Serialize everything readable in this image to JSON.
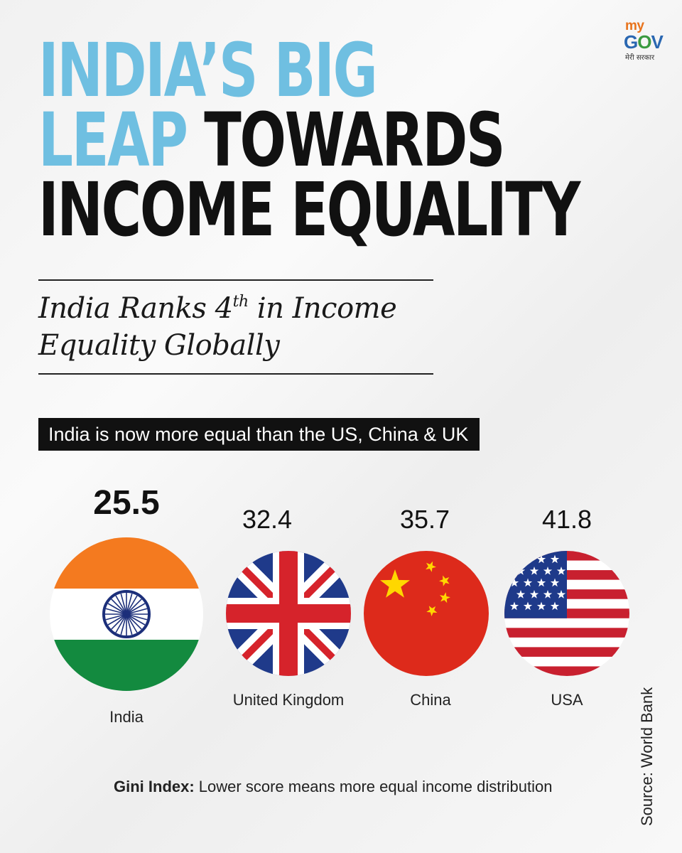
{
  "logo": {
    "line1": "my",
    "line2_a": "G",
    "line2_b": "O",
    "line2_c": "V",
    "tagline": "मेरी सरकार"
  },
  "title": {
    "line1": "INDIA’S BIG",
    "line2_blue": "LEAP",
    "line2_dark": "TOWARDS",
    "line3": "INCOME EQUALITY"
  },
  "subtitle": {
    "part1": "India Ranks 4",
    "sup": "th",
    "part2": " in Income",
    "line2": "Equality Globally"
  },
  "banner": "India is now more equal than the US, China & UK",
  "chart_data": {
    "type": "bar",
    "categories": [
      "India",
      "United Kingdom",
      "China",
      "USA"
    ],
    "values": [
      25.5,
      32.4,
      35.7,
      41.8
    ],
    "value_labels": [
      "25.5",
      "32.4",
      "35.7",
      "41.8"
    ]
  },
  "note": {
    "bold": "Gini Index:",
    "text": " Lower score means more equal income distribution"
  },
  "source": "Source: World Bank",
  "colors": {
    "title_blue": "#6fbfe1",
    "india_saffron": "#f47a1f",
    "india_green": "#138a3f",
    "chakra_navy": "#1c2f7a",
    "uk_blue": "#1f3a8a",
    "uk_red": "#d6232b",
    "china_red": "#dd2a1b",
    "china_yellow": "#ffd700",
    "us_red": "#c8202f",
    "us_blue": "#1f3a8a"
  }
}
